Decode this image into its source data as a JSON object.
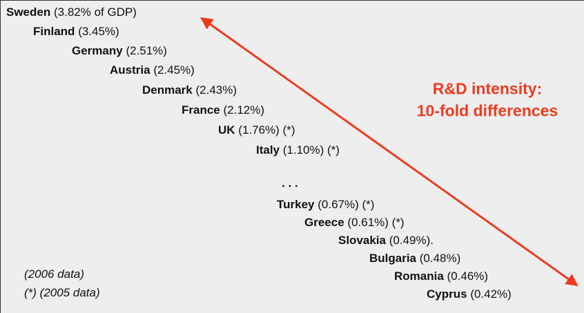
{
  "items": [
    {
      "name": "Sweden",
      "detail": "(3.82% of GDP)"
    },
    {
      "name": "Finland",
      "detail": "(3.45%)"
    },
    {
      "name": "Germany",
      "detail": "(2.51%)"
    },
    {
      "name": "Austria",
      "detail": "(2.45%)"
    },
    {
      "name": "Denmark",
      "detail": "(2.43%)"
    },
    {
      "name": "France",
      "detail": "(2.12%)"
    },
    {
      "name": "UK",
      "detail": "(1.76%) (*)"
    },
    {
      "name": "Italy",
      "detail": "(1.10%) (*)"
    },
    {
      "name": ". . .",
      "detail": ""
    },
    {
      "name": "Turkey",
      "detail": "(0.67%) (*)"
    },
    {
      "name": "Greece",
      "detail": "(0.61%) (*)"
    },
    {
      "name": "Slovakia",
      "detail": "(0.49%)."
    },
    {
      "name": "Bulgaria",
      "detail": "(0.48%)"
    },
    {
      "name": "Romania",
      "detail": "(0.46%)"
    },
    {
      "name": "Cyprus",
      "detail": "(0.42%)"
    }
  ],
  "headline": [
    "R&D intensity:",
    "10-fold differences"
  ],
  "notes": [
    "(2006 data)",
    "(*) (2005 data)"
  ]
}
